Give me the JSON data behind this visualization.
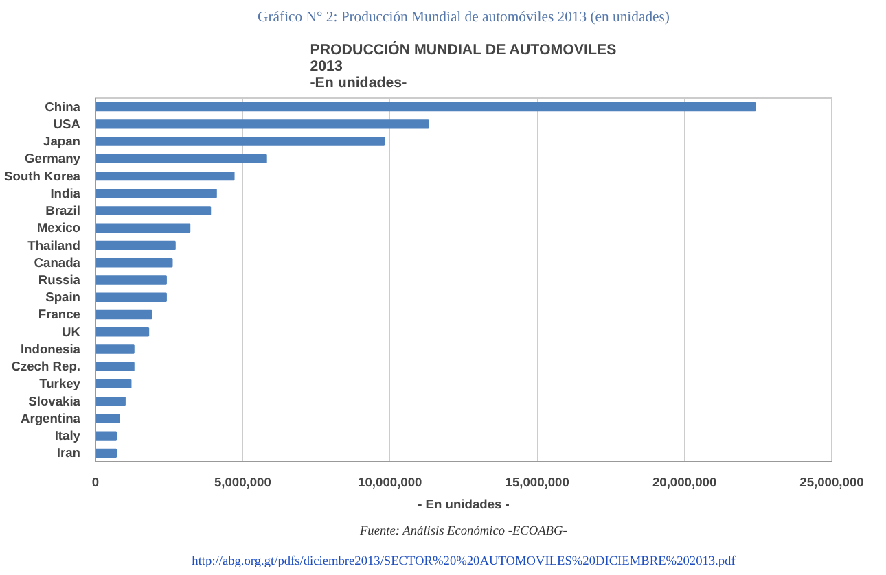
{
  "chart_data": {
    "type": "bar",
    "orientation": "horizontal",
    "title": "PRODUCCIÓN MUNDIAL DE AUTOMOVILES\n2013\n-En unidades-",
    "xlabel": "- En unidades -",
    "categories": [
      "China",
      "USA",
      "Japan",
      "Germany",
      "South Korea",
      "India",
      "Brazil",
      "Mexico",
      "Thailand",
      "Canada",
      "Russia",
      "Spain",
      "France",
      "UK",
      "Indonesia",
      "Czech Rep.",
      "Turkey",
      "Slovakia",
      "Argentina",
      "Italy",
      "Iran"
    ],
    "values": [
      22400000,
      11300000,
      9800000,
      5800000,
      4700000,
      4100000,
      3900000,
      3200000,
      2700000,
      2600000,
      2400000,
      2400000,
      1900000,
      1800000,
      1300000,
      1300000,
      1200000,
      1000000,
      800000,
      700000,
      700000
    ],
    "color": "#4f81bd",
    "xlim": [
      0,
      25000000
    ],
    "xticks": [
      0,
      {
        "value": 5000000,
        "label": "5,000,000"
      },
      {
        "value": 10000000,
        "label": "10,000,000"
      },
      {
        "value": 15000000,
        "label": "15,000,000"
      },
      {
        "value": 20000000,
        "label": "20,000,000"
      },
      {
        "value": 25000000,
        "label": "25,000,000"
      }
    ],
    "grid": "x",
    "annotations": [
      "Gráfico N° 2: Producción Mundial de automóviles 2013 (en unidades)",
      "Fuente: Análisis Económico -ECOABG-",
      "http://abg.org.gt/pdfs/diciembre2013/SECTOR%20%20AUTOMOVILES%20DICIEMBRE%202013.pdf"
    ]
  }
}
